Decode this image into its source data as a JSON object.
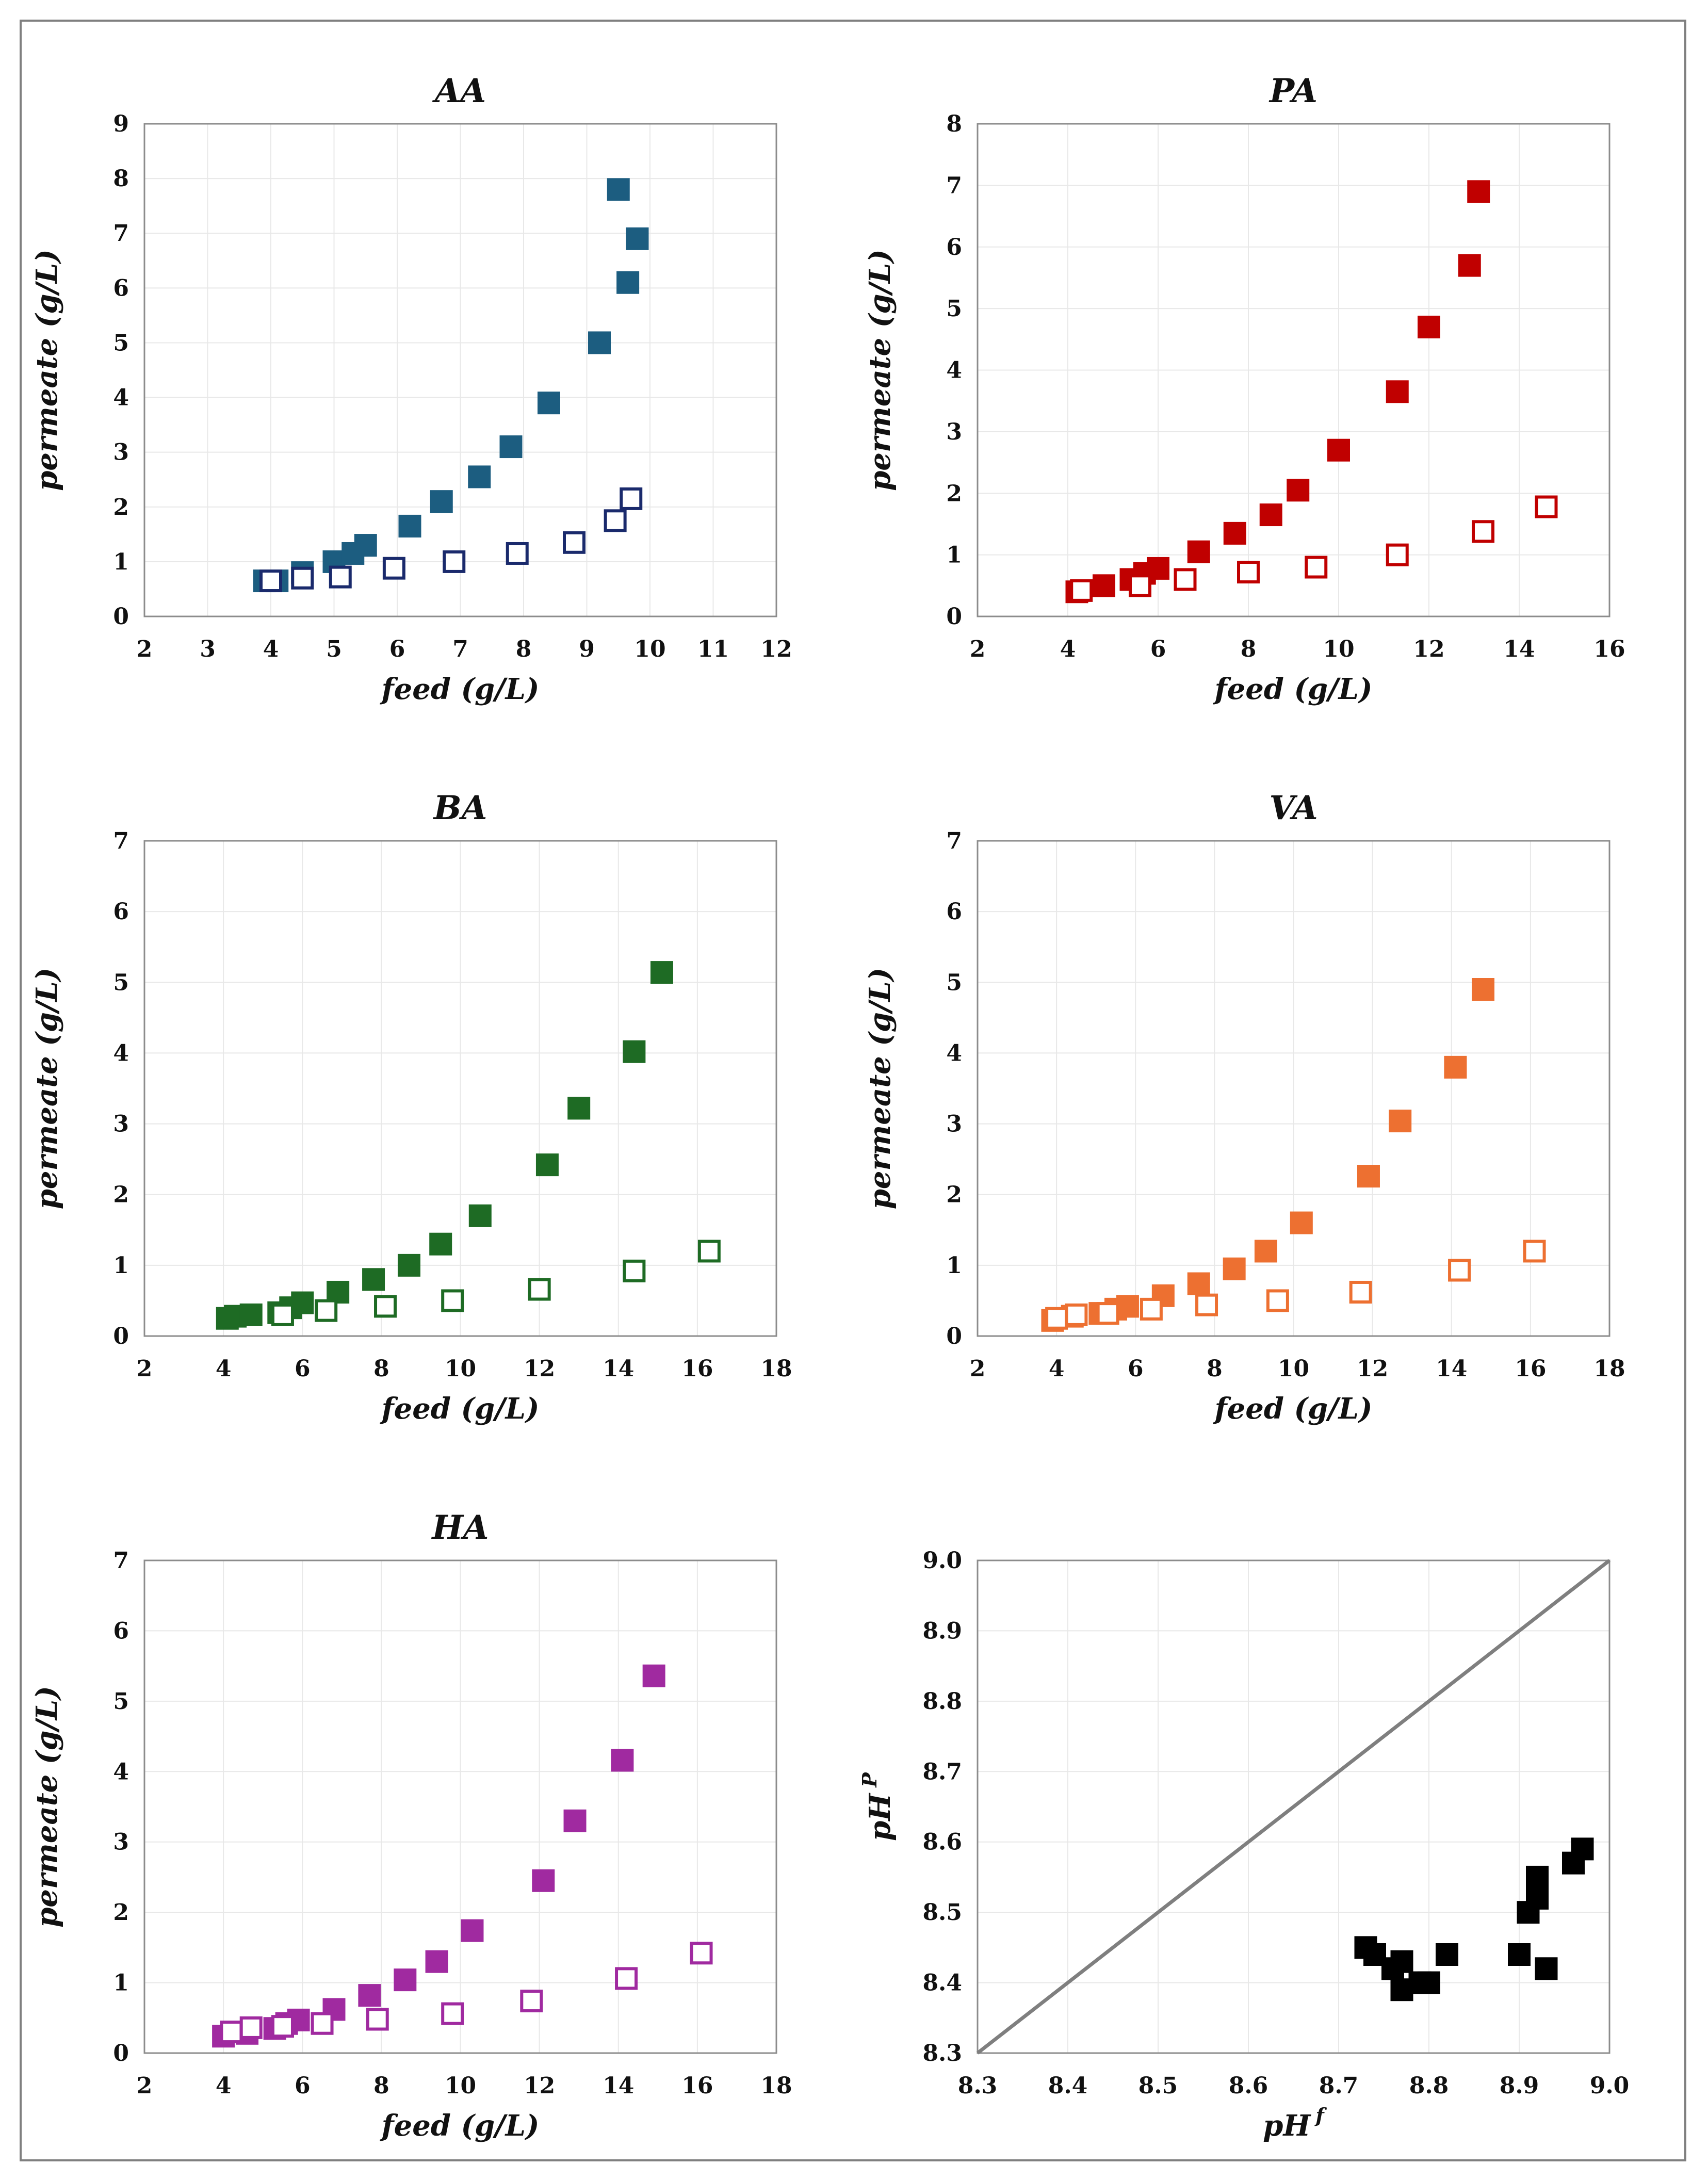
{
  "chart_data": [
    {
      "type": "scatter",
      "title": "AA",
      "xlabel": "feed (g/L)",
      "ylabel": "permeate  (g/L)",
      "xlim": [
        2,
        12
      ],
      "ylim": [
        0,
        9
      ],
      "xticks": [
        2,
        3,
        4,
        5,
        6,
        7,
        8,
        9,
        10,
        11,
        12
      ],
      "yticks": [
        0,
        1,
        2,
        3,
        4,
        5,
        6,
        7,
        8,
        9
      ],
      "color": "#1c5d80",
      "series": [
        {
          "name": "filled",
          "marker": "filled-square",
          "x": [
            3.9,
            4.1,
            4.5,
            5.0,
            5.3,
            5.5,
            6.2,
            6.7,
            7.3,
            7.8,
            8.4,
            9.2,
            9.5,
            9.65,
            9.8
          ],
          "y": [
            0.65,
            0.65,
            0.8,
            1.0,
            1.15,
            1.3,
            1.65,
            2.1,
            2.55,
            3.1,
            3.9,
            5.0,
            7.8,
            6.1,
            6.9
          ]
        },
        {
          "name": "open",
          "marker": "open-square",
          "color": "#1a2a6c",
          "x": [
            4.0,
            4.5,
            5.1,
            5.95,
            6.9,
            7.9,
            8.8,
            9.45,
            9.7
          ],
          "y": [
            0.65,
            0.7,
            0.72,
            0.88,
            1.0,
            1.15,
            1.35,
            1.75,
            2.15
          ]
        }
      ]
    },
    {
      "type": "scatter",
      "title": "PA",
      "xlabel": "feed (g/L)",
      "ylabel": "permeate  (g/L)",
      "xlim": [
        2,
        16
      ],
      "ylim": [
        0,
        8
      ],
      "xticks": [
        2,
        4,
        6,
        8,
        10,
        12,
        14,
        16
      ],
      "yticks": [
        0,
        1,
        2,
        3,
        4,
        5,
        6,
        7,
        8
      ],
      "color": "#c00000",
      "series": [
        {
          "name": "filled",
          "marker": "filled-square",
          "x": [
            4.2,
            4.8,
            5.4,
            5.7,
            6.0,
            6.9,
            7.7,
            8.5,
            9.1,
            10.0,
            11.3,
            12.0,
            12.9,
            13.1
          ],
          "y": [
            0.4,
            0.5,
            0.6,
            0.7,
            0.78,
            1.05,
            1.35,
            1.65,
            2.05,
            2.7,
            3.65,
            4.7,
            5.7,
            6.9
          ]
        },
        {
          "name": "open",
          "marker": "open-square",
          "x": [
            4.3,
            5.6,
            6.6,
            8.0,
            9.5,
            11.3,
            13.2,
            14.6
          ],
          "y": [
            0.42,
            0.5,
            0.6,
            0.72,
            0.8,
            1.0,
            1.38,
            1.78
          ]
        }
      ]
    },
    {
      "type": "scatter",
      "title": "BA",
      "xlabel": "feed (g/L)",
      "ylabel": "permeate  (g/L)",
      "xlim": [
        2,
        18
      ],
      "ylim": [
        0,
        7
      ],
      "xticks": [
        2,
        4,
        6,
        8,
        10,
        12,
        14,
        16,
        18
      ],
      "yticks": [
        0,
        1,
        2,
        3,
        4,
        5,
        6,
        7
      ],
      "color": "#1e6b24",
      "series": [
        {
          "name": "filled",
          "marker": "filled-square",
          "x": [
            4.1,
            4.3,
            4.7,
            5.4,
            5.7,
            6.0,
            6.9,
            7.8,
            8.7,
            9.5,
            10.5,
            12.2,
            13.0,
            14.4,
            15.1
          ],
          "y": [
            0.25,
            0.28,
            0.3,
            0.33,
            0.4,
            0.47,
            0.62,
            0.8,
            1.0,
            1.3,
            1.7,
            2.42,
            3.22,
            4.02,
            5.14
          ]
        },
        {
          "name": "open",
          "marker": "open-square",
          "x": [
            5.5,
            6.6,
            8.1,
            9.8,
            12.0,
            14.4,
            16.3
          ],
          "y": [
            0.3,
            0.36,
            0.42,
            0.5,
            0.66,
            0.92,
            1.2
          ]
        }
      ]
    },
    {
      "type": "scatter",
      "title": "VA",
      "xlabel": "feed (g/L)",
      "ylabel": "permeate  (g/L)",
      "xlim": [
        2,
        18
      ],
      "ylim": [
        0,
        7
      ],
      "xticks": [
        2,
        4,
        6,
        8,
        10,
        12,
        14,
        16,
        18
      ],
      "yticks": [
        0,
        1,
        2,
        3,
        4,
        5,
        6,
        7
      ],
      "color": "#ed7031",
      "series": [
        {
          "name": "filled",
          "marker": "filled-square",
          "x": [
            3.9,
            4.4,
            5.1,
            5.5,
            5.8,
            6.7,
            7.6,
            8.5,
            9.3,
            10.2,
            11.9,
            12.7,
            14.1,
            14.8
          ],
          "y": [
            0.22,
            0.28,
            0.32,
            0.38,
            0.42,
            0.57,
            0.74,
            0.95,
            1.2,
            1.6,
            2.26,
            3.04,
            3.8,
            4.9
          ]
        },
        {
          "name": "open",
          "marker": "open-square",
          "x": [
            4.0,
            4.5,
            5.3,
            6.4,
            7.8,
            9.6,
            11.7,
            14.2,
            16.1
          ],
          "y": [
            0.25,
            0.3,
            0.32,
            0.38,
            0.44,
            0.5,
            0.62,
            0.93,
            1.2
          ]
        }
      ]
    },
    {
      "type": "scatter",
      "title": "HA",
      "xlabel": "feed (g/L)",
      "ylabel": "permeate (g/L)",
      "xlim": [
        2,
        18
      ],
      "ylim": [
        0,
        7
      ],
      "xticks": [
        2,
        4,
        6,
        8,
        10,
        12,
        14,
        16,
        18
      ],
      "yticks": [
        0,
        1,
        2,
        3,
        4,
        5,
        6,
        7
      ],
      "color": "#a02aa0",
      "series": [
        {
          "name": "filled",
          "marker": "filled-square",
          "x": [
            4.0,
            4.6,
            5.3,
            5.6,
            5.9,
            6.8,
            7.7,
            8.6,
            9.4,
            10.3,
            12.1,
            12.9,
            14.1,
            14.9
          ],
          "y": [
            0.24,
            0.28,
            0.35,
            0.42,
            0.47,
            0.62,
            0.82,
            1.04,
            1.3,
            1.74,
            2.45,
            3.3,
            4.16,
            5.36
          ]
        },
        {
          "name": "open",
          "marker": "open-square",
          "x": [
            4.2,
            4.7,
            5.5,
            6.5,
            7.9,
            9.8,
            11.8,
            14.2,
            16.1
          ],
          "y": [
            0.3,
            0.36,
            0.38,
            0.42,
            0.48,
            0.56,
            0.74,
            1.06,
            1.42
          ]
        }
      ]
    },
    {
      "type": "scatter",
      "title": "",
      "xlabel": "pH",
      "xlabel_sup": "f",
      "ylabel": "pH",
      "ylabel_sup": "P",
      "xlim": [
        8.3,
        9.0
      ],
      "ylim": [
        8.3,
        9.0
      ],
      "xticks": [
        "8.3",
        "8.4",
        "8.5",
        "8.6",
        "8.7",
        "8.8",
        "8.9",
        "9.0"
      ],
      "yticks": [
        "8.3",
        "8.4",
        "8.5",
        "8.6",
        "8.7",
        "8.8",
        "8.9",
        "9.0"
      ],
      "color": "#000000",
      "diagonal": {
        "from": [
          8.3,
          8.3
        ],
        "to": [
          9.0,
          9.0
        ],
        "color": "#7f7f7f"
      },
      "series": [
        {
          "name": "pH",
          "marker": "filled-square",
          "x": [
            8.73,
            8.74,
            8.76,
            8.77,
            8.77,
            8.79,
            8.8,
            8.82,
            8.9,
            8.91,
            8.92,
            8.92,
            8.93,
            8.96,
            8.97
          ],
          "y": [
            8.45,
            8.44,
            8.42,
            8.43,
            8.39,
            8.4,
            8.4,
            8.44,
            8.44,
            8.5,
            8.52,
            8.55,
            8.42,
            8.57,
            8.59
          ]
        }
      ]
    }
  ]
}
